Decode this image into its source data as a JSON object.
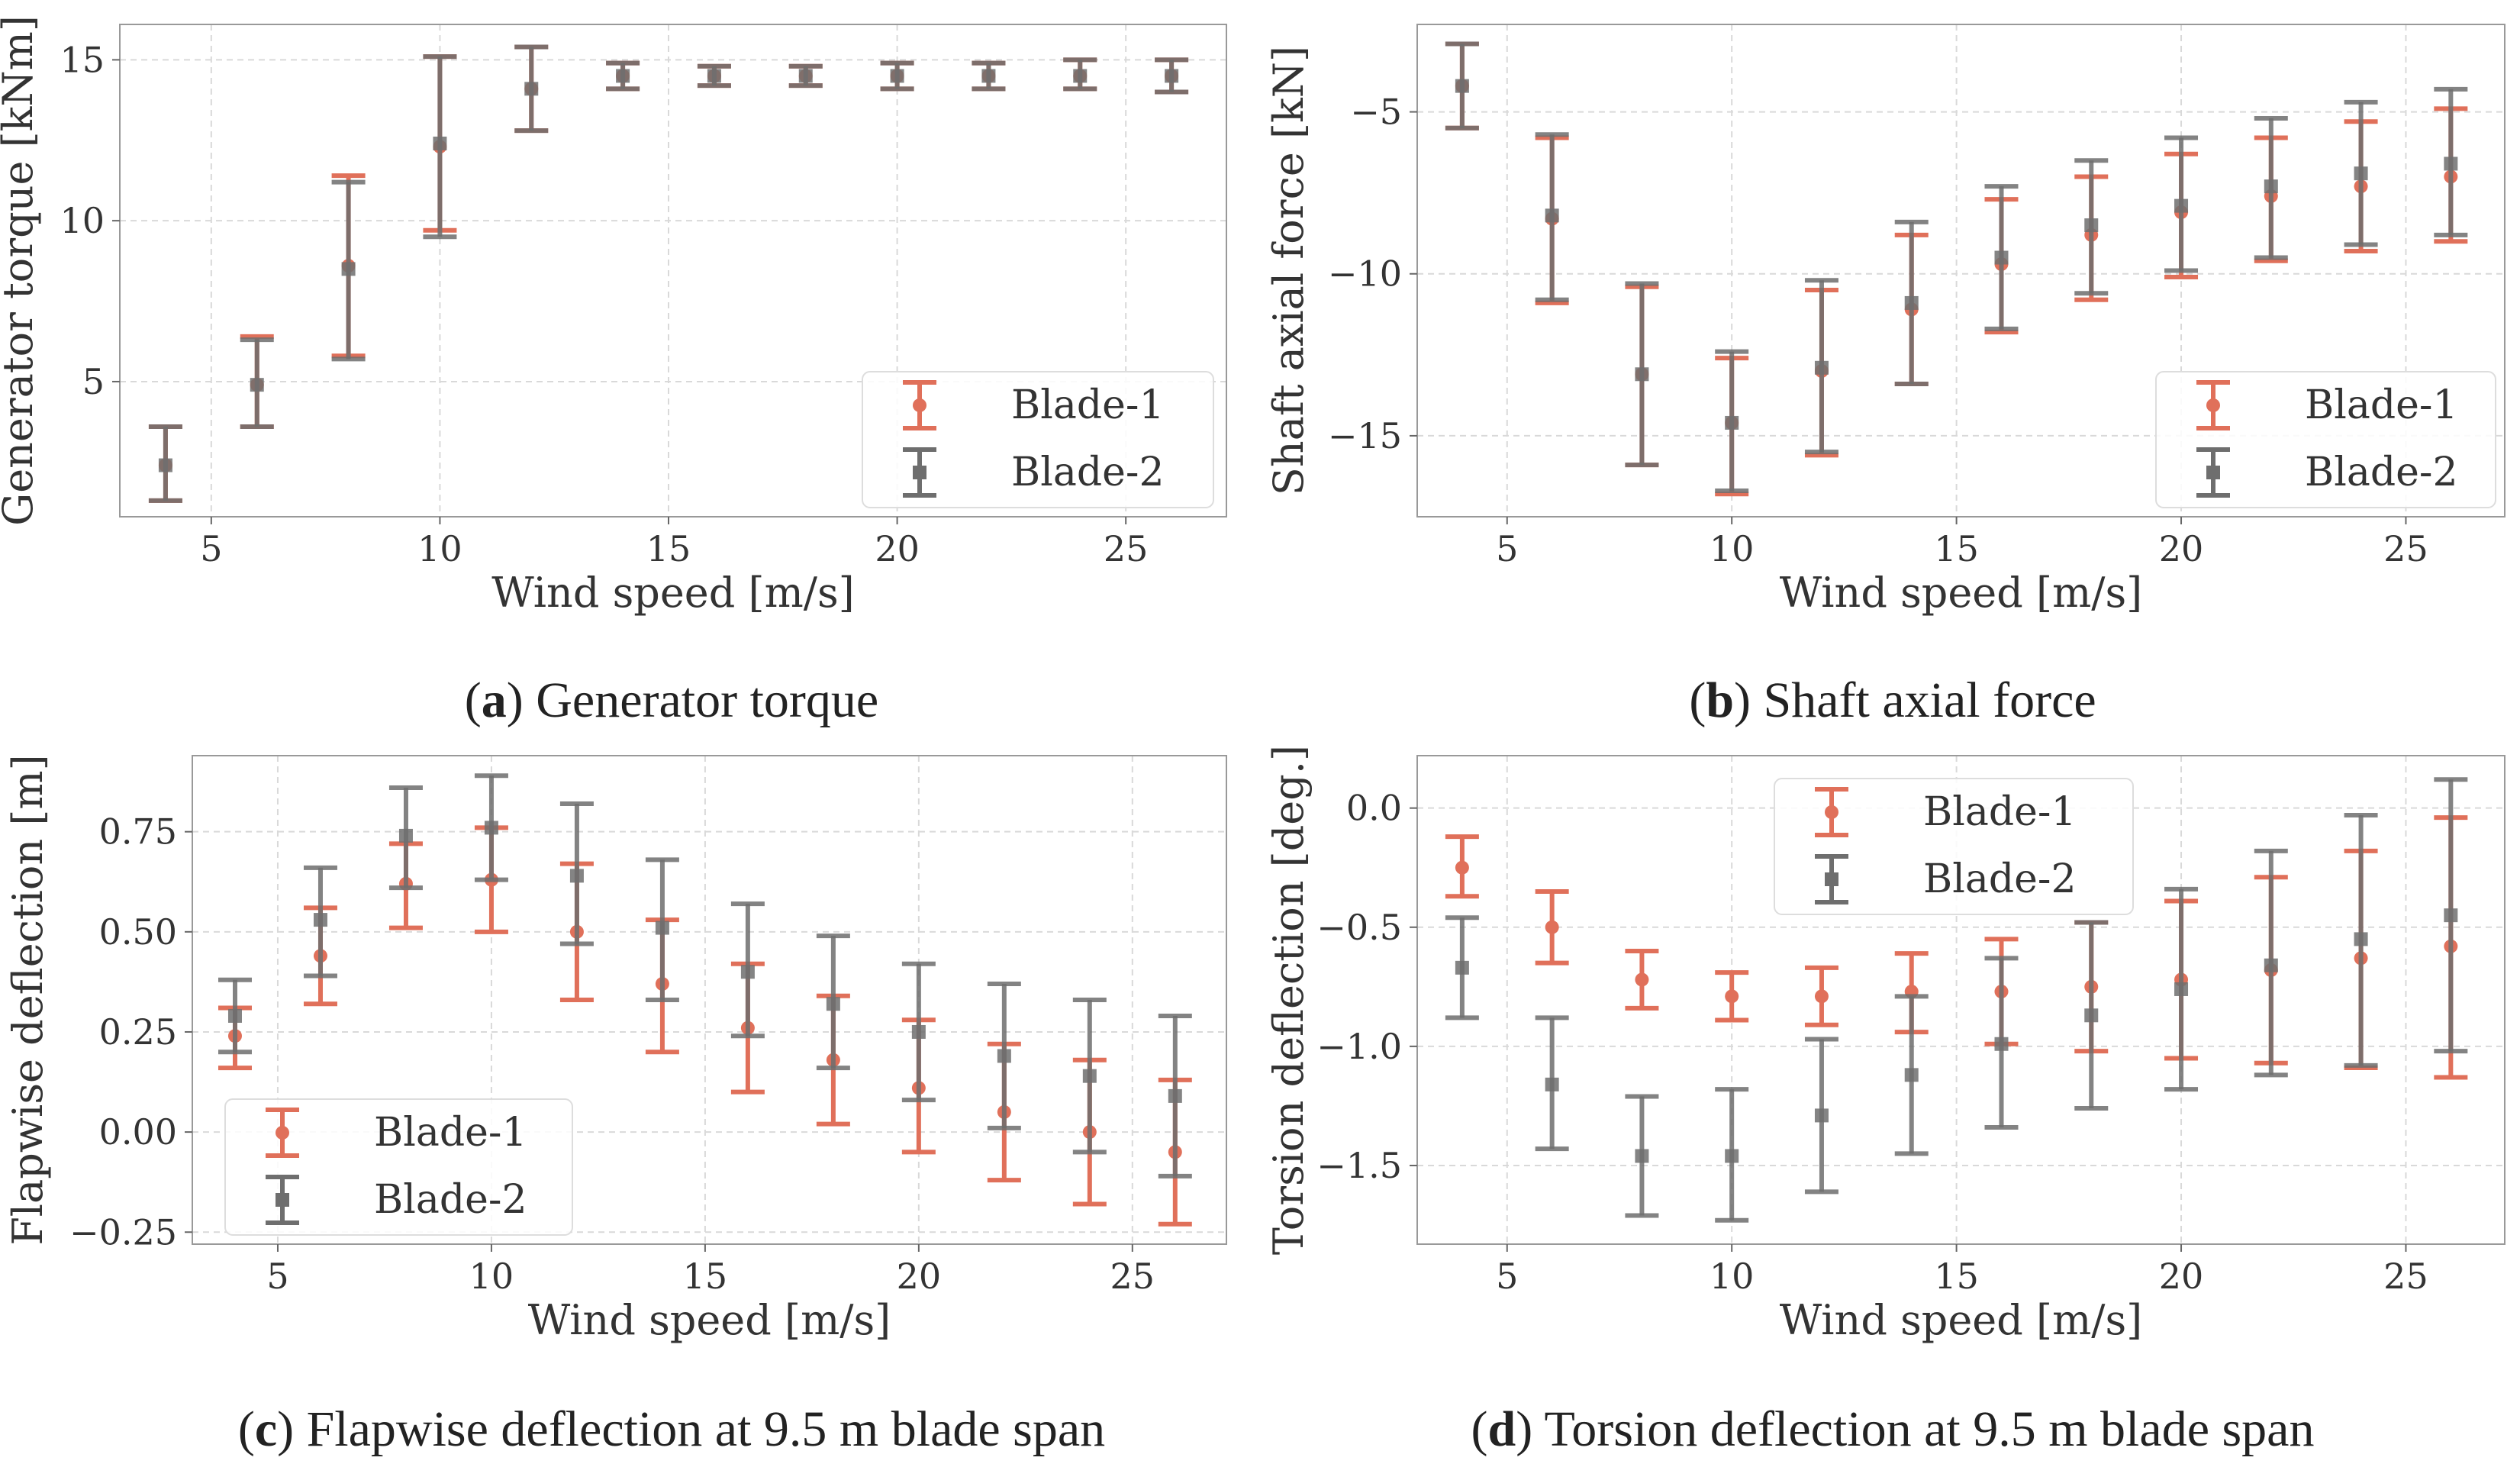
{
  "colors": {
    "blade1": "#E0705A",
    "blade2": "#6E6E6E",
    "grid": "#D9D9D9",
    "axis": "#999999"
  },
  "panels": [
    {
      "letter": "a",
      "caption": "Generator torque"
    },
    {
      "letter": "b",
      "caption": "Shaft axial force"
    },
    {
      "letter": "c",
      "caption": "Flapwise deflection at 9.5 m blade span"
    },
    {
      "letter": "d",
      "caption": "Torsion deflection at 9.5 m blade span"
    }
  ],
  "chart_data": [
    {
      "type": "errorbar",
      "title": "",
      "xlabel": "Wind speed [m/s]",
      "ylabel": "Generator torque [kNm]",
      "xlim": [
        3,
        27.2
      ],
      "ylim": [
        0.8,
        16.1
      ],
      "xticks": [
        5,
        10,
        15,
        20,
        25
      ],
      "yticks": [
        5,
        10,
        15
      ],
      "grid": true,
      "legend_position": "lower-right",
      "x": [
        4,
        6,
        8,
        10,
        12,
        14,
        16,
        18,
        20,
        22,
        24,
        26
      ],
      "series": [
        {
          "name": "Blade-1",
          "marker": "circle",
          "mean": [
            2.4,
            4.9,
            8.6,
            12.3,
            14.1,
            14.5,
            14.5,
            14.5,
            14.5,
            14.5,
            14.5,
            14.5
          ],
          "lower": [
            1.3,
            3.6,
            5.8,
            9.7,
            12.8,
            14.1,
            14.2,
            14.2,
            14.1,
            14.1,
            14.1,
            14.0
          ],
          "upper": [
            3.6,
            6.4,
            11.4,
            15.1,
            15.4,
            14.9,
            14.8,
            14.8,
            14.9,
            14.9,
            15.0,
            15.0
          ]
        },
        {
          "name": "Blade-2",
          "marker": "square",
          "mean": [
            2.4,
            4.9,
            8.5,
            12.4,
            14.1,
            14.5,
            14.5,
            14.5,
            14.5,
            14.5,
            14.5,
            14.5
          ],
          "lower": [
            1.3,
            3.6,
            5.7,
            9.5,
            12.8,
            14.1,
            14.2,
            14.2,
            14.1,
            14.1,
            14.1,
            14.0
          ],
          "upper": [
            3.6,
            6.3,
            11.2,
            15.1,
            15.4,
            14.9,
            14.8,
            14.8,
            14.9,
            14.9,
            15.0,
            15.0
          ]
        }
      ]
    },
    {
      "type": "errorbar",
      "title": "",
      "xlabel": "Wind speed [m/s]",
      "ylabel": "Shaft axial force [kN]",
      "xlim": [
        3,
        27.2
      ],
      "ylim": [
        -17.5,
        -2.3
      ],
      "xticks": [
        5,
        10,
        15,
        20,
        25
      ],
      "yticks": [
        -5,
        -10,
        -15
      ],
      "grid": true,
      "legend_position": "lower-right",
      "x": [
        4,
        6,
        8,
        10,
        12,
        14,
        16,
        18,
        20,
        22,
        24,
        26
      ],
      "series": [
        {
          "name": "Blade-1",
          "marker": "circle",
          "mean": [
            -4.2,
            -8.3,
            -13.1,
            -14.6,
            -13.0,
            -11.1,
            -9.7,
            -8.8,
            -8.1,
            -7.6,
            -7.3,
            -7.0
          ],
          "lower": [
            -5.5,
            -10.9,
            -15.9,
            -16.8,
            -15.6,
            -13.4,
            -11.8,
            -10.8,
            -10.1,
            -9.6,
            -9.3,
            -9.0
          ],
          "upper": [
            -2.9,
            -5.8,
            -10.4,
            -12.6,
            -10.5,
            -8.8,
            -7.7,
            -7.0,
            -6.3,
            -5.8,
            -5.3,
            -4.9
          ]
        },
        {
          "name": "Blade-2",
          "marker": "square",
          "mean": [
            -4.2,
            -8.2,
            -13.1,
            -14.6,
            -12.9,
            -10.9,
            -9.5,
            -8.5,
            -7.9,
            -7.3,
            -6.9,
            -6.6
          ],
          "lower": [
            -5.5,
            -10.8,
            -15.9,
            -16.7,
            -15.5,
            -13.4,
            -11.7,
            -10.6,
            -9.9,
            -9.5,
            -9.1,
            -8.8
          ],
          "upper": [
            -2.9,
            -5.7,
            -10.3,
            -12.4,
            -10.2,
            -8.4,
            -7.3,
            -6.5,
            -5.8,
            -5.2,
            -4.7,
            -4.3
          ]
        }
      ]
    },
    {
      "type": "errorbar",
      "title": "",
      "xlabel": "Wind speed [m/s]",
      "ylabel": "Flapwise deflection [m]",
      "xlim": [
        3,
        27.2
      ],
      "ylim": [
        -0.28,
        0.94
      ],
      "xticks": [
        5,
        10,
        15,
        20,
        25
      ],
      "yticks": [
        -0.25,
        0.0,
        0.25,
        0.5,
        0.75
      ],
      "ytick_labels": [
        "−0.25",
        "0.00",
        "0.25",
        "0.50",
        "0.75"
      ],
      "grid": true,
      "legend_position": "lower-left",
      "x": [
        4,
        6,
        8,
        10,
        12,
        14,
        16,
        18,
        20,
        22,
        24,
        26
      ],
      "series": [
        {
          "name": "Blade-1",
          "marker": "circle",
          "mean": [
            0.24,
            0.44,
            0.62,
            0.63,
            0.5,
            0.37,
            0.26,
            0.18,
            0.11,
            0.05,
            0.0,
            -0.05
          ],
          "lower": [
            0.16,
            0.32,
            0.51,
            0.5,
            0.33,
            0.2,
            0.1,
            0.02,
            -0.05,
            -0.12,
            -0.18,
            -0.23
          ],
          "upper": [
            0.31,
            0.56,
            0.72,
            0.76,
            0.67,
            0.53,
            0.42,
            0.34,
            0.28,
            0.22,
            0.18,
            0.13
          ]
        },
        {
          "name": "Blade-2",
          "marker": "square",
          "mean": [
            0.29,
            0.53,
            0.74,
            0.76,
            0.64,
            0.51,
            0.4,
            0.32,
            0.25,
            0.19,
            0.14,
            0.09
          ],
          "lower": [
            0.2,
            0.39,
            0.61,
            0.63,
            0.47,
            0.33,
            0.24,
            0.16,
            0.08,
            0.01,
            -0.05,
            -0.11
          ],
          "upper": [
            0.38,
            0.66,
            0.86,
            0.89,
            0.82,
            0.68,
            0.57,
            0.49,
            0.42,
            0.37,
            0.33,
            0.29
          ]
        }
      ]
    },
    {
      "type": "errorbar",
      "title": "",
      "xlabel": "Wind speed [m/s]",
      "ylabel": "Torsion deflection [deg.]",
      "xlim": [
        3,
        27.2
      ],
      "ylim": [
        -1.83,
        0.22
      ],
      "xticks": [
        5,
        10,
        15,
        20,
        25
      ],
      "yticks": [
        -1.5,
        -1.0,
        -0.5,
        0.0
      ],
      "ytick_labels": [
        "−1.5",
        "−1.0",
        "−0.5",
        "0.0"
      ],
      "grid": true,
      "legend_position": "upper-center",
      "x": [
        4,
        6,
        8,
        10,
        12,
        14,
        16,
        18,
        20,
        22,
        24,
        26
      ],
      "series": [
        {
          "name": "Blade-1",
          "marker": "circle",
          "mean": [
            -0.25,
            -0.5,
            -0.72,
            -0.79,
            -0.79,
            -0.77,
            -0.77,
            -0.75,
            -0.72,
            -0.68,
            -0.63,
            -0.58
          ],
          "lower": [
            -0.37,
            -0.65,
            -0.84,
            -0.89,
            -0.91,
            -0.94,
            -0.99,
            -1.02,
            -1.05,
            -1.07,
            -1.09,
            -1.13
          ],
          "upper": [
            -0.12,
            -0.35,
            -0.6,
            -0.69,
            -0.67,
            -0.61,
            -0.55,
            -0.48,
            -0.39,
            -0.29,
            -0.18,
            -0.04
          ]
        },
        {
          "name": "Blade-2",
          "marker": "square",
          "mean": [
            -0.67,
            -1.16,
            -1.46,
            -1.46,
            -1.29,
            -1.12,
            -0.99,
            -0.87,
            -0.76,
            -0.66,
            -0.55,
            -0.45
          ],
          "lower": [
            -0.88,
            -1.43,
            -1.71,
            -1.73,
            -1.61,
            -1.45,
            -1.34,
            -1.26,
            -1.18,
            -1.12,
            -1.08,
            -1.02
          ],
          "upper": [
            -0.46,
            -0.88,
            -1.21,
            -1.18,
            -0.97,
            -0.79,
            -0.63,
            -0.48,
            -0.34,
            -0.18,
            -0.03,
            0.12
          ]
        }
      ]
    }
  ]
}
